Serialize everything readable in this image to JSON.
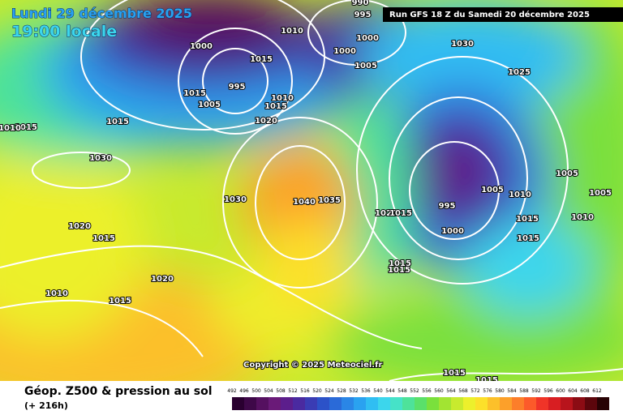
{
  "header": {
    "date": "Lundi 29 décembre 2025",
    "time": "19:00 locale",
    "run": "Run GFS 18 Z du Samedi 20 décembre 2025"
  },
  "copyright": "Copyright © 2025 Meteociel.fr",
  "footer": {
    "title": "Géop. Z500 & pression au sol",
    "lead": "(+ 216h)"
  },
  "colorbar": {
    "labels": [
      492,
      496,
      500,
      504,
      508,
      512,
      516,
      520,
      524,
      528,
      532,
      536,
      540,
      544,
      548,
      552,
      556,
      560,
      564,
      568,
      572,
      576,
      580,
      584,
      588,
      592,
      596,
      600,
      604,
      608,
      612
    ],
    "colors": [
      "#2a0030",
      "#3e0848",
      "#551060",
      "#6a1a78",
      "#5c1e8c",
      "#4a2aa0",
      "#3a3cb4",
      "#2c52c8",
      "#2a6ad8",
      "#2a86e6",
      "#2aa2f0",
      "#30bef2",
      "#3cd6ec",
      "#46e2c8",
      "#4ee29a",
      "#5ae06a",
      "#7ae03c",
      "#a2e432",
      "#c8ea2e",
      "#ecf02c",
      "#fce02a",
      "#fcc02a",
      "#fca02a",
      "#fc7e2a",
      "#fc5a2a",
      "#f03428",
      "#d81e22",
      "#b8141c",
      "#8c0c14",
      "#5c060c",
      "#280204"
    ]
  },
  "isobar_labels": [
    1010,
    1000,
    1015,
    995,
    1015,
    1005,
    1010,
    1015,
    1020,
    1015,
    1030,
    1015,
    1010,
    1030,
    1040,
    1035,
    1020,
    1015,
    1020,
    1010,
    1015,
    1020,
    1015,
    995,
    1000,
    1005,
    1010,
    1015,
    1015,
    1005,
    1005,
    1010,
    1015,
    1015,
    1030,
    1025,
    1000,
    1005,
    1000,
    995,
    990,
    1015,
    1015
  ]
}
